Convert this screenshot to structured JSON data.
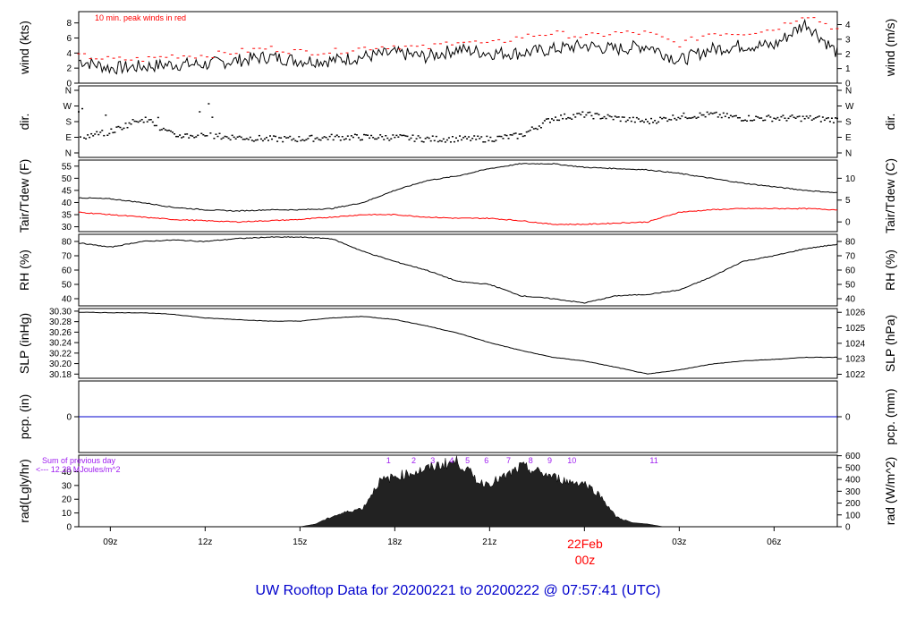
{
  "title": "UW Rooftop Data for 20200221  to  20200222 @ 07:57:41  (UTC)",
  "colors": {
    "primary": "#000000",
    "accent_red": "#ff0000",
    "precip_blue": "#0000cc",
    "title_blue": "#0000cc",
    "purple": "#a020f0",
    "date_red": "#ff0000"
  },
  "x_axis": {
    "tick_labels": [
      "09z",
      "12z",
      "15z",
      "18z",
      "21z",
      "03z",
      "06z"
    ],
    "tick_hours": [
      9,
      12,
      15,
      18,
      21,
      27,
      30
    ],
    "date_label_line1": "22Feb",
    "date_label_line2": "00z",
    "date_hour": 24,
    "range_hours": [
      8.0,
      32.0
    ]
  },
  "chart_data": [
    {
      "type": "line",
      "panel": "wind",
      "ylabel_left": "wind (kts)",
      "ylabel_right": "wind (m/s)",
      "left_ticks": [
        0,
        2,
        4,
        6,
        8
      ],
      "right_ticks": [
        0,
        1,
        2,
        3,
        4
      ],
      "ylim": [
        0,
        9.5
      ],
      "annotation": "10 min. peak winds in red",
      "series": [
        {
          "color": "#000000",
          "x": [
            8,
            9,
            10,
            11,
            12,
            13,
            14,
            15,
            16,
            17,
            18,
            19,
            20,
            21,
            22,
            23,
            24,
            25,
            26,
            27,
            28,
            29,
            30,
            31,
            32
          ],
          "y": [
            3,
            2,
            2.2,
            2.5,
            2.5,
            3,
            3.5,
            3,
            3,
            3.5,
            4,
            3.5,
            4.5,
            4,
            4,
            4.5,
            5,
            4.5,
            5,
            3,
            4.5,
            5,
            5,
            8,
            4
          ]
        },
        {
          "color": "#ff0000",
          "style": "dashes",
          "x": [
            8,
            9,
            10,
            11,
            12,
            13,
            14,
            15,
            16,
            17,
            18,
            19,
            20,
            21,
            22,
            23,
            24,
            25,
            26,
            27,
            28,
            29,
            30,
            31,
            32
          ],
          "y": [
            3.5,
            3,
            3,
            3.5,
            3.5,
            4,
            4.5,
            4,
            4,
            4.5,
            4.8,
            4.5,
            5.5,
            5,
            6,
            6.5,
            6,
            6.5,
            6.5,
            5,
            6.5,
            6.5,
            7,
            9,
            7
          ]
        }
      ]
    },
    {
      "type": "scatter",
      "panel": "dir",
      "ylabel_left": "dir.",
      "ylabel_right": "dir.",
      "left_ticks": [
        "N",
        "E",
        "S",
        "W",
        "N"
      ],
      "right_ticks": [
        "N",
        "E",
        "S",
        "W",
        "N"
      ],
      "ylim": [
        0,
        360
      ],
      "series": [
        {
          "color": "#000000",
          "x": [
            8,
            9,
            10,
            11,
            12,
            13,
            14,
            15,
            16,
            17,
            18,
            19,
            20,
            21,
            22,
            23,
            24,
            25,
            26,
            27,
            28,
            29,
            30,
            31,
            32
          ],
          "y": [
            90,
            120,
            200,
            100,
            100,
            90,
            80,
            80,
            90,
            90,
            90,
            80,
            80,
            80,
            100,
            200,
            220,
            200,
            180,
            210,
            220,
            200,
            200,
            200,
            190
          ]
        }
      ]
    },
    {
      "type": "line",
      "panel": "temp",
      "ylabel_left": "Tair/Tdew (F)",
      "ylabel_right": "Tair/Tdew (C)",
      "left_ticks": [
        30,
        35,
        40,
        45,
        50,
        55
      ],
      "right_ticks": [
        0,
        5,
        10
      ],
      "ylim": [
        28,
        57.5
      ],
      "series": [
        {
          "name": "Tair",
          "color": "#000000",
          "x": [
            8,
            9,
            10,
            11,
            12,
            13,
            14,
            15,
            16,
            17,
            18,
            19,
            20,
            21,
            22,
            23,
            24,
            25,
            26,
            27,
            28,
            29,
            30,
            31,
            32
          ],
          "y": [
            42,
            41.5,
            40,
            38,
            37,
            36.5,
            37,
            37,
            37.5,
            40,
            45,
            49,
            51,
            54,
            56,
            56,
            54.5,
            54,
            53.5,
            52,
            50,
            48,
            46.5,
            45,
            44
          ]
        },
        {
          "name": "Tdew",
          "color": "#ff0000",
          "x": [
            8,
            9,
            10,
            11,
            12,
            13,
            14,
            15,
            16,
            17,
            18,
            19,
            20,
            21,
            22,
            23,
            24,
            25,
            26,
            27,
            28,
            29,
            30,
            31,
            32
          ],
          "y": [
            36,
            35,
            34,
            33,
            32.5,
            32,
            32.5,
            33,
            34,
            35,
            35,
            34,
            33.5,
            33.5,
            32.5,
            31,
            31,
            31.5,
            32,
            36,
            37,
            37.5,
            37.5,
            37.5,
            37
          ]
        }
      ]
    },
    {
      "type": "line",
      "panel": "rh",
      "ylabel_left": "RH (%)",
      "ylabel_right": "RH (%)",
      "left_ticks": [
        40,
        50,
        60,
        70,
        80
      ],
      "right_ticks": [
        40,
        50,
        60,
        70,
        80
      ],
      "ylim": [
        35,
        85
      ],
      "series": [
        {
          "color": "#000000",
          "x": [
            8,
            9,
            10,
            11,
            12,
            13,
            14,
            15,
            16,
            17,
            18,
            19,
            20,
            21,
            22,
            23,
            24,
            25,
            26,
            27,
            28,
            29,
            30,
            31,
            32
          ],
          "y": [
            79,
            76,
            80,
            81,
            80,
            82,
            83,
            83,
            82,
            73,
            66,
            60,
            52,
            50,
            42,
            40,
            37,
            42,
            43,
            46,
            55,
            66,
            70,
            75,
            78
          ]
        }
      ]
    },
    {
      "type": "line",
      "panel": "slp",
      "ylabel_left": "SLP (inHg)",
      "ylabel_right": "SLP (hPa)",
      "left_ticks": [
        "30.18",
        "30.20",
        "30.22",
        "30.24",
        "30.26",
        "30.28",
        "30.30"
      ],
      "right_ticks": [
        1022,
        1023,
        1024,
        1025,
        1026
      ],
      "ylim": [
        30.172,
        30.305
      ],
      "series": [
        {
          "color": "#000000",
          "x": [
            8,
            9,
            10,
            11,
            12,
            13,
            14,
            15,
            16,
            17,
            18,
            19,
            20,
            21,
            22,
            23,
            24,
            25,
            26,
            27,
            28,
            29,
            30,
            31,
            32
          ],
          "y": [
            30.298,
            30.297,
            30.297,
            30.294,
            30.287,
            30.284,
            30.281,
            30.281,
            30.287,
            30.29,
            30.284,
            30.272,
            30.258,
            30.24,
            30.225,
            30.212,
            30.205,
            30.193,
            30.18,
            30.188,
            30.199,
            30.205,
            30.208,
            30.212,
            30.212
          ]
        }
      ]
    },
    {
      "type": "line",
      "panel": "pcp",
      "ylabel_left": "pcp. (in)",
      "ylabel_right": "pcp. (mm)",
      "left_ticks": [
        0
      ],
      "right_ticks": [
        0
      ],
      "series": [
        {
          "color": "#0000cc",
          "x": [
            8,
            32
          ],
          "y": [
            0,
            0
          ]
        }
      ]
    },
    {
      "type": "area",
      "panel": "rad",
      "ylabel_left": "rad(Lgly/hr)",
      "ylabel_right": "rad (W/m^2)",
      "left_ticks": [
        0,
        10,
        20,
        30,
        40
      ],
      "right_ticks": [
        0,
        100,
        200,
        300,
        400,
        500,
        600
      ],
      "ylim": [
        0,
        52
      ],
      "hour_labels": [
        "1",
        "2",
        "3",
        "4",
        "5",
        "6",
        "7",
        "8",
        "9",
        "10",
        "11"
      ],
      "hour_label_positions": [
        17.8,
        18.6,
        19.2,
        19.8,
        20.3,
        20.9,
        21.6,
        22.3,
        22.9,
        23.6,
        26.2
      ],
      "annotation_line1": "Sum of previous day",
      "annotation_line2": "<--- 12.28 MJoules/m^2",
      "series": [
        {
          "color": "#222222",
          "x": [
            15,
            15.5,
            16,
            16.5,
            17,
            17.5,
            18,
            18.5,
            19,
            19.5,
            20,
            20.3,
            20.7,
            21,
            21.5,
            22,
            22.5,
            23,
            23.5,
            24,
            24.5,
            25,
            25.5,
            26,
            26.5
          ],
          "y": [
            0,
            2,
            8,
            12,
            15,
            36,
            40,
            43,
            46,
            50,
            52,
            45,
            35,
            35,
            40,
            48,
            44,
            40,
            36,
            35,
            25,
            8,
            3,
            2,
            0
          ]
        }
      ]
    }
  ]
}
